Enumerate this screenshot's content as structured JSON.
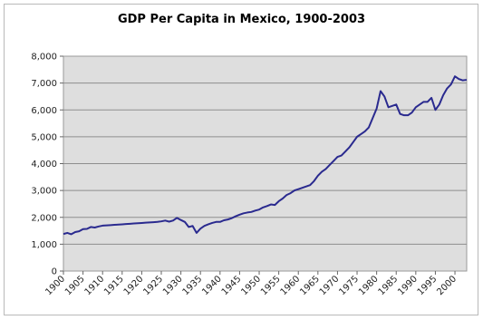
{
  "chart_data": {
    "type": "line",
    "title": "GDP Per Capita in Mexico, 1900-2003",
    "xlabel": "",
    "ylabel": "",
    "xlim": [
      1900,
      2003
    ],
    "ylim": [
      0,
      8000
    ],
    "grid": true,
    "legend": "none",
    "y_ticks": [
      {
        "value": 0,
        "label": "0"
      },
      {
        "value": 1000,
        "label": "1,000"
      },
      {
        "value": 2000,
        "label": "2,000"
      },
      {
        "value": 3000,
        "label": "3,000"
      },
      {
        "value": 4000,
        "label": "4,000"
      },
      {
        "value": 5000,
        "label": "5,000"
      },
      {
        "value": 6000,
        "label": "6,000"
      },
      {
        "value": 7000,
        "label": "7,000"
      },
      {
        "value": 8000,
        "label": "8,000"
      }
    ],
    "x_ticks": [
      {
        "value": 1900,
        "label": "1900"
      },
      {
        "value": 1905,
        "label": "1905"
      },
      {
        "value": 1910,
        "label": "1910"
      },
      {
        "value": 1915,
        "label": "1915"
      },
      {
        "value": 1920,
        "label": "1920"
      },
      {
        "value": 1925,
        "label": "1925"
      },
      {
        "value": 1930,
        "label": "1930"
      },
      {
        "value": 1935,
        "label": "1935"
      },
      {
        "value": 1940,
        "label": "1940"
      },
      {
        "value": 1945,
        "label": "1945"
      },
      {
        "value": 1950,
        "label": "1950"
      },
      {
        "value": 1955,
        "label": "1955"
      },
      {
        "value": 1960,
        "label": "1960"
      },
      {
        "value": 1965,
        "label": "1965"
      },
      {
        "value": 1970,
        "label": "1970"
      },
      {
        "value": 1975,
        "label": "1975"
      },
      {
        "value": 1980,
        "label": "1980"
      },
      {
        "value": 1985,
        "label": "1985"
      },
      {
        "value": 1990,
        "label": "1990"
      },
      {
        "value": 1995,
        "label": "1995"
      },
      {
        "value": 2000,
        "label": "2000"
      }
    ],
    "series": [
      {
        "color": "#2a2a8f",
        "points": [
          [
            1900,
            1380
          ],
          [
            1901,
            1420
          ],
          [
            1902,
            1370
          ],
          [
            1903,
            1450
          ],
          [
            1904,
            1480
          ],
          [
            1905,
            1560
          ],
          [
            1906,
            1570
          ],
          [
            1907,
            1640
          ],
          [
            1908,
            1620
          ],
          [
            1909,
            1660
          ],
          [
            1910,
            1690
          ],
          [
            1911,
            1700
          ],
          [
            1912,
            1710
          ],
          [
            1913,
            1720
          ],
          [
            1914,
            1730
          ],
          [
            1915,
            1740
          ],
          [
            1916,
            1750
          ],
          [
            1917,
            1760
          ],
          [
            1918,
            1770
          ],
          [
            1919,
            1780
          ],
          [
            1920,
            1790
          ],
          [
            1921,
            1800
          ],
          [
            1922,
            1810
          ],
          [
            1923,
            1820
          ],
          [
            1924,
            1830
          ],
          [
            1925,
            1850
          ],
          [
            1926,
            1880
          ],
          [
            1927,
            1840
          ],
          [
            1928,
            1880
          ],
          [
            1929,
            1980
          ],
          [
            1930,
            1900
          ],
          [
            1931,
            1830
          ],
          [
            1932,
            1640
          ],
          [
            1933,
            1680
          ],
          [
            1934,
            1420
          ],
          [
            1935,
            1580
          ],
          [
            1936,
            1680
          ],
          [
            1937,
            1740
          ],
          [
            1938,
            1790
          ],
          [
            1939,
            1830
          ],
          [
            1940,
            1830
          ],
          [
            1941,
            1890
          ],
          [
            1942,
            1920
          ],
          [
            1943,
            1970
          ],
          [
            1944,
            2040
          ],
          [
            1945,
            2100
          ],
          [
            1946,
            2150
          ],
          [
            1947,
            2180
          ],
          [
            1948,
            2200
          ],
          [
            1949,
            2250
          ],
          [
            1950,
            2290
          ],
          [
            1951,
            2370
          ],
          [
            1952,
            2420
          ],
          [
            1953,
            2480
          ],
          [
            1954,
            2460
          ],
          [
            1955,
            2600
          ],
          [
            1956,
            2700
          ],
          [
            1957,
            2830
          ],
          [
            1958,
            2900
          ],
          [
            1959,
            3000
          ],
          [
            1960,
            3050
          ],
          [
            1961,
            3100
          ],
          [
            1962,
            3150
          ],
          [
            1963,
            3200
          ],
          [
            1964,
            3350
          ],
          [
            1965,
            3550
          ],
          [
            1966,
            3700
          ],
          [
            1967,
            3800
          ],
          [
            1968,
            3950
          ],
          [
            1969,
            4100
          ],
          [
            1970,
            4250
          ],
          [
            1971,
            4300
          ],
          [
            1972,
            4450
          ],
          [
            1973,
            4600
          ],
          [
            1974,
            4800
          ],
          [
            1975,
            5000
          ],
          [
            1976,
            5100
          ],
          [
            1977,
            5200
          ],
          [
            1978,
            5350
          ],
          [
            1979,
            5700
          ],
          [
            1980,
            6050
          ],
          [
            1981,
            6700
          ],
          [
            1982,
            6500
          ],
          [
            1983,
            6100
          ],
          [
            1984,
            6150
          ],
          [
            1985,
            6200
          ],
          [
            1986,
            5850
          ],
          [
            1987,
            5800
          ],
          [
            1988,
            5800
          ],
          [
            1989,
            5900
          ],
          [
            1990,
            6100
          ],
          [
            1991,
            6200
          ],
          [
            1992,
            6300
          ],
          [
            1993,
            6300
          ],
          [
            1994,
            6450
          ],
          [
            1995,
            6000
          ],
          [
            1996,
            6200
          ],
          [
            1997,
            6550
          ],
          [
            1998,
            6800
          ],
          [
            1999,
            6950
          ],
          [
            2000,
            7250
          ],
          [
            2001,
            7150
          ],
          [
            2002,
            7100
          ],
          [
            2003,
            7120
          ]
        ]
      }
    ]
  }
}
